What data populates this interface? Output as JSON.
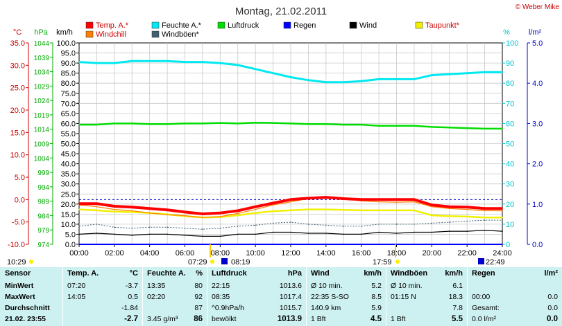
{
  "title": "Montag, 21.02.2011",
  "copyright": "© Weber Mike",
  "colors": {
    "temp": "#ff0000",
    "humidity": "#00e8f0",
    "pressure": "#00dd00",
    "rain": "#0000ff",
    "wind": "#000000",
    "dewpoint": "#f0f000",
    "windchill": "#ff8000",
    "gust": "#406070",
    "bg": "#ffffff",
    "table_bg": "#cdf0f0"
  },
  "legend": [
    {
      "label": "Temp. A.*",
      "color": "#ff0000"
    },
    {
      "label": "Feuchte A.*",
      "color": "#00e8f0"
    },
    {
      "label": "Luftdruck",
      "color": "#00dd00"
    },
    {
      "label": "Regen",
      "color": "#0000ff"
    },
    {
      "label": "Wind",
      "color": "#000000"
    },
    {
      "label": "Taupunkt*",
      "color": "#f0f000"
    },
    {
      "label": "Windchill",
      "color": "#ff8000"
    },
    {
      "label": "Windböen*",
      "color": "#406070"
    }
  ],
  "axes": {
    "temp": {
      "unit": "°C",
      "ticks": [
        "35.0",
        "30.0",
        "25.0",
        "20.0",
        "15.0",
        "10.0",
        "5.0",
        "0.0",
        "-5.0",
        "-10.0"
      ]
    },
    "pressure": {
      "unit": "hPa",
      "ticks": [
        "1044",
        "1039",
        "1034",
        "1029",
        "1024",
        "1019",
        "1014",
        "1009",
        "1004",
        "999",
        "994",
        "989",
        "984",
        "979",
        "974"
      ]
    },
    "wind": {
      "unit": "km/h",
      "ticks": [
        "100.0",
        "95.0",
        "90.0",
        "85.0",
        "80.0",
        "75.0",
        "70.0",
        "65.0",
        "60.0",
        "55.0",
        "50.0",
        "45.0",
        "40.0",
        "35.0",
        "30.0",
        "25.0",
        "20.0",
        "15.0",
        "10.0",
        "5.0",
        "0.0"
      ]
    },
    "humidity": {
      "unit": "%",
      "ticks": [
        "100",
        "90",
        "80",
        "70",
        "60",
        "50",
        "40",
        "30",
        "20",
        "10",
        "0"
      ]
    },
    "rain": {
      "unit": "l/m²",
      "ticks": [
        "5.0",
        "4.0",
        "3.0",
        "2.0",
        "1.0",
        "0.0"
      ]
    },
    "time": {
      "ticks": [
        "00:00",
        "02:00",
        "04:00",
        "06:00",
        "08:00",
        "10:00",
        "12:00",
        "14:00",
        "16:00",
        "18:00",
        "20:00",
        "22:00",
        "24:00"
      ]
    }
  },
  "sun_events": {
    "sunrise_prev": "10:29",
    "sunrise": "07:29",
    "moonset": "08:19",
    "sunset": "17:59",
    "moonrise": "22:49"
  },
  "chart_data": {
    "type": "line",
    "xlabel": "",
    "xlim": [
      0,
      24
    ],
    "series": [
      {
        "name": "Temp. A.*",
        "axis": "°C",
        "x": [
          0,
          1,
          2,
          3,
          4,
          5,
          6,
          7,
          8,
          9,
          10,
          11,
          12,
          13,
          14,
          15,
          16,
          17,
          18,
          19,
          20,
          21,
          22,
          23,
          24
        ],
        "values": [
          -0.9,
          -0.9,
          -1.5,
          -1.7,
          -2.0,
          -2.3,
          -2.8,
          -3.2,
          -3.0,
          -2.5,
          -1.6,
          -0.8,
          0.0,
          0.3,
          0.5,
          0.2,
          0.0,
          0.0,
          0.0,
          0.0,
          -1.2,
          -1.6,
          -1.7,
          -2.0,
          -2.0
        ]
      },
      {
        "name": "Feuchte A.*",
        "axis": "%",
        "x": [
          0,
          1,
          2,
          3,
          4,
          5,
          6,
          7,
          8,
          9,
          10,
          11,
          12,
          13,
          14,
          15,
          16,
          17,
          18,
          19,
          20,
          21,
          22,
          23,
          24
        ],
        "values": [
          90.5,
          90,
          90,
          91,
          91,
          91,
          90.5,
          90.5,
          90,
          89,
          87,
          85,
          83,
          81.5,
          80.5,
          80.5,
          81,
          82,
          82,
          82,
          84,
          84.5,
          85,
          85.5,
          85.5
        ]
      },
      {
        "name": "Luftdruck",
        "axis": "hPa",
        "x": [
          0,
          1,
          2,
          3,
          4,
          5,
          6,
          7,
          8,
          9,
          10,
          11,
          12,
          13,
          14,
          15,
          16,
          17,
          18,
          19,
          20,
          21,
          22,
          23,
          24
        ],
        "values": [
          1015.6,
          1015.6,
          1016.0,
          1016.0,
          1015.8,
          1015.8,
          1016.0,
          1016.0,
          1016.2,
          1016.0,
          1016.3,
          1016.2,
          1016.0,
          1015.8,
          1015.8,
          1015.6,
          1015.6,
          1015.2,
          1015.2,
          1015.2,
          1014.8,
          1014.6,
          1014.4,
          1014.2,
          1014.2
        ]
      },
      {
        "name": "Taupunkt*",
        "axis": "°C",
        "x": [
          0,
          1,
          2,
          3,
          4,
          5,
          6,
          7,
          8,
          9,
          10,
          11,
          12,
          13,
          14,
          15,
          16,
          17,
          18,
          19,
          20,
          21,
          22,
          23,
          24
        ],
        "values": [
          -2.2,
          -2.4,
          -2.7,
          -2.8,
          -3.0,
          -3.3,
          -3.7,
          -4.0,
          -3.9,
          -3.5,
          -3.0,
          -2.6,
          -2.4,
          -2.2,
          -2.2,
          -2.3,
          -2.4,
          -2.4,
          -2.4,
          -2.4,
          -3.5,
          -3.7,
          -3.8,
          -4.0,
          -4.0
        ]
      },
      {
        "name": "Windchill",
        "axis": "°C",
        "x": [
          0,
          1,
          2,
          3,
          4,
          5,
          6,
          7,
          8,
          9,
          10,
          11,
          12,
          13,
          14,
          15,
          16,
          17,
          18,
          19,
          20,
          21,
          22,
          23,
          24
        ],
        "values": [
          -1.2,
          -1.6,
          -2.2,
          -2.5,
          -3.0,
          -3.4,
          -3.6,
          -4.0,
          -3.8,
          -3.1,
          -2.2,
          -1.2,
          -0.5,
          0.2,
          0.5,
          0.2,
          -0.3,
          -0.5,
          -0.6,
          -0.5,
          -1.6,
          -2.0,
          -2.2,
          -2.5,
          -2.5
        ]
      },
      {
        "name": "Wind",
        "axis": "km/h",
        "x": [
          0,
          1,
          2,
          3,
          4,
          5,
          6,
          7,
          8,
          9,
          10,
          11,
          12,
          13,
          14,
          15,
          16,
          17,
          18,
          19,
          20,
          21,
          22,
          23,
          24
        ],
        "values": [
          5,
          5.5,
          5,
          4.5,
          5,
          5,
          4.5,
          4,
          4,
          5,
          5,
          6,
          6,
          5.5,
          5.5,
          5,
          5,
          6,
          5.5,
          6,
          6,
          6.5,
          6.5,
          7,
          6.5
        ]
      },
      {
        "name": "Windböen*",
        "axis": "km/h",
        "x": [
          0,
          1,
          2,
          3,
          4,
          5,
          6,
          7,
          8,
          9,
          10,
          11,
          12,
          13,
          14,
          15,
          16,
          17,
          18,
          19,
          20,
          21,
          22,
          23,
          24
        ],
        "values": [
          9,
          10,
          8.5,
          8,
          8.5,
          8.5,
          8,
          7.5,
          8,
          9,
          9.5,
          10.5,
          11,
          10,
          9.5,
          9,
          9,
          10,
          10,
          10,
          10.5,
          11,
          11.5,
          12,
          12
        ]
      },
      {
        "name": "Regen",
        "axis": "l/m²",
        "x": [
          0,
          24
        ],
        "values": [
          0.0,
          0.0
        ]
      }
    ],
    "ref_line_0C": true
  },
  "table": {
    "row_labels": [
      "Sensor",
      "MinWert",
      "MaxWert",
      "Durchschnitt",
      "21.02. 23:55"
    ],
    "columns": [
      {
        "name": "Temp. A.",
        "unit": "°C",
        "rows": [
          [
            "07:20",
            "-3.7"
          ],
          [
            "14:05",
            "0.5"
          ],
          [
            "",
            "-1.84"
          ],
          [
            "",
            "-2.7"
          ]
        ]
      },
      {
        "name": "Feuchte A.",
        "unit": "%",
        "rows": [
          [
            "13:35",
            "80"
          ],
          [
            "02:20",
            "92"
          ],
          [
            "",
            "87"
          ],
          [
            "3.45 g/m³",
            "86"
          ]
        ]
      },
      {
        "name": "Luftdruck",
        "unit": "hPa",
        "rows": [
          [
            "22:15",
            "1013.6"
          ],
          [
            "08:35",
            "1017.4"
          ],
          [
            "^0.9hPa/h",
            "1015.7"
          ],
          [
            "bewölkt",
            "1013.9"
          ]
        ]
      },
      {
        "name": "Wind",
        "unit": "km/h",
        "rows": [
          [
            "Ø 10 min.",
            "5.2"
          ],
          [
            "22:35   S-SO",
            "8.5"
          ],
          [
            "140.9 km",
            "5.9"
          ],
          [
            "1 Bft",
            "4.5"
          ]
        ]
      },
      {
        "name": "Windböen",
        "unit": "km/h",
        "rows": [
          [
            "Ø 10 min.",
            "6.1"
          ],
          [
            "01:15   N",
            "18.3"
          ],
          [
            "",
            "7.8"
          ],
          [
            "1 Bft",
            "5.5"
          ]
        ]
      },
      {
        "name": "Regen",
        "unit": "l/m²",
        "rows": [
          [
            "",
            ""
          ],
          [
            "00:00",
            "0.0"
          ],
          [
            "Gesamt:",
            "0.0"
          ],
          [
            "0.0 l/m²",
            "0.0"
          ]
        ]
      }
    ]
  }
}
